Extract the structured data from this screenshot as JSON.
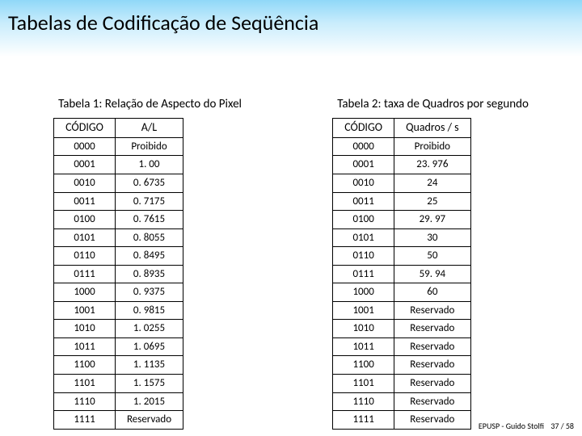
{
  "title": "Tabelas de Codificação de Seqüência",
  "table1": {
    "subtitle": "Tabela 1: Relação de Aspecto do Pixel",
    "head": {
      "c0": "CÓDIGO",
      "c1": "A/L"
    },
    "rows": [
      {
        "c0": "0000",
        "c1": "Proibido"
      },
      {
        "c0": "0001",
        "c1": "1. 00"
      },
      {
        "c0": "0010",
        "c1": "0. 6735"
      },
      {
        "c0": "0011",
        "c1": "0. 7175"
      },
      {
        "c0": "0100",
        "c1": "0. 7615"
      },
      {
        "c0": "0101",
        "c1": "0. 8055"
      },
      {
        "c0": "0110",
        "c1": "0. 8495"
      },
      {
        "c0": "0111",
        "c1": "0. 8935"
      },
      {
        "c0": "1000",
        "c1": "0. 9375"
      },
      {
        "c0": "1001",
        "c1": "0. 9815"
      },
      {
        "c0": "1010",
        "c1": "1. 0255"
      },
      {
        "c0": "1011",
        "c1": "1. 0695"
      },
      {
        "c0": "1100",
        "c1": "1. 1135"
      },
      {
        "c0": "1101",
        "c1": "1. 1575"
      },
      {
        "c0": "1110",
        "c1": "1. 2015"
      },
      {
        "c0": "1111",
        "c1": "Reservado"
      }
    ]
  },
  "table2": {
    "subtitle": "Tabela 2: taxa de Quadros por segundo",
    "head": {
      "c0": "CÓDIGO",
      "c1": "Quadros / s"
    },
    "rows": [
      {
        "c0": "0000",
        "c1": "Proibido"
      },
      {
        "c0": "0001",
        "c1": "23. 976"
      },
      {
        "c0": "0010",
        "c1": "24"
      },
      {
        "c0": "0011",
        "c1": "25"
      },
      {
        "c0": "0100",
        "c1": "29. 97"
      },
      {
        "c0": "0101",
        "c1": "30"
      },
      {
        "c0": "0110",
        "c1": "50"
      },
      {
        "c0": "0111",
        "c1": "59. 94"
      },
      {
        "c0": "1000",
        "c1": "60"
      },
      {
        "c0": "1001",
        "c1": "Reservado"
      },
      {
        "c0": "1010",
        "c1": "Reservado"
      },
      {
        "c0": "1011",
        "c1": "Reservado"
      },
      {
        "c0": "1100",
        "c1": "Reservado"
      },
      {
        "c0": "1101",
        "c1": "Reservado"
      },
      {
        "c0": "1110",
        "c1": "Reservado"
      },
      {
        "c0": "1111",
        "c1": "Reservado"
      }
    ]
  },
  "footer": {
    "author": "EPUSP - Guido Stolfi",
    "page": "37 / 58"
  },
  "style": {
    "title_fontsize": 26,
    "subtitle_fontsize": 15,
    "cell_fontsize": 13,
    "footer_fontsize": 10,
    "band_gradient_top": "#90d8f8",
    "band_gradient_mid": "#c8ecfc",
    "background": "#ffffff",
    "border_color": "#000000",
    "font_family": "Calibri"
  }
}
